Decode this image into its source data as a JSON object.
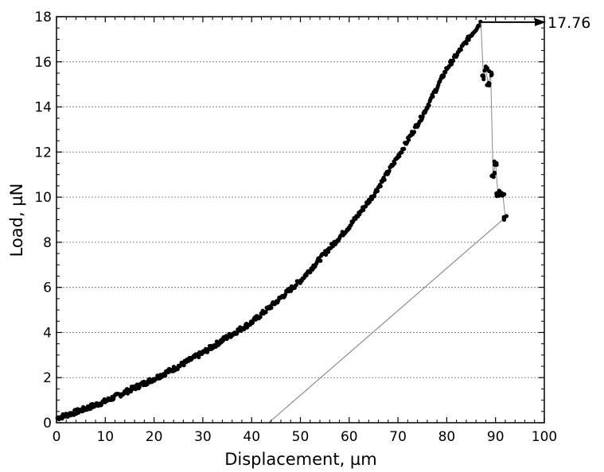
{
  "chart_data": {
    "type": "scatter",
    "title": "",
    "xlabel": "Displacement, µm",
    "ylabel": "Load, µN",
    "xlim": [
      0,
      100
    ],
    "ylim": [
      0,
      18
    ],
    "xticks": [
      "0",
      "10",
      "20",
      "30",
      "40",
      "50",
      "60",
      "70",
      "80",
      "90",
      "100"
    ],
    "yticks": [
      "0",
      "2",
      "4",
      "6",
      "8",
      "10",
      "12",
      "14",
      "16",
      "18"
    ],
    "grid": "horizontal-dotted",
    "peak": {
      "x": 87,
      "y": 17.76,
      "label": "17.76"
    },
    "loading_curve": {
      "x": [
        0,
        5,
        10,
        15,
        20,
        25,
        30,
        35,
        40,
        45,
        50,
        55,
        60,
        65,
        70,
        75,
        80,
        85,
        87
      ],
      "y": [
        0.2,
        0.55,
        0.95,
        1.45,
        1.95,
        2.5,
        3.1,
        3.8,
        4.45,
        5.35,
        6.3,
        7.5,
        8.7,
        10.1,
        11.8,
        13.6,
        15.7,
        17.2,
        17.76
      ]
    },
    "drop_points": {
      "x": [
        87.5,
        88,
        88.5,
        89,
        89.5,
        90,
        90.5,
        91,
        91.5,
        92
      ],
      "y": [
        15.3,
        15.7,
        15.0,
        15.5,
        11.0,
        11.5,
        10.1,
        10.2,
        10.1,
        9.1
      ]
    },
    "unloading_line": {
      "x": [
        92,
        43.5
      ],
      "y": [
        9.1,
        0
      ]
    },
    "colors": {
      "points": "#000000",
      "line": "#888888",
      "grid": "#888888"
    }
  }
}
